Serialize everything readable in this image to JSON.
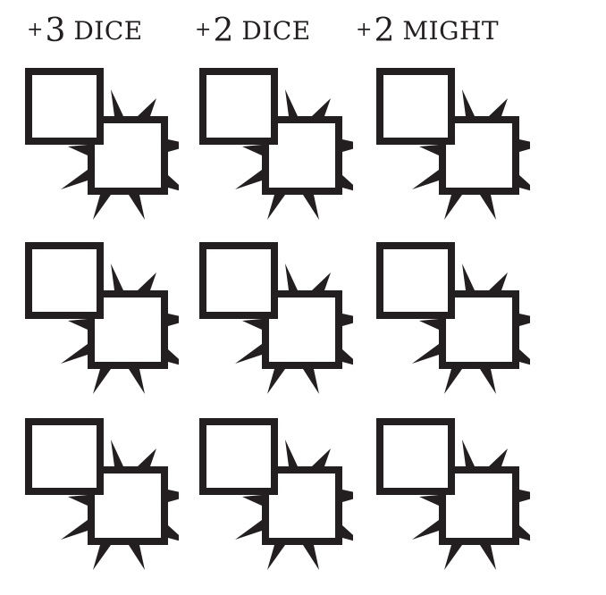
{
  "headers": [
    {
      "plus": "+",
      "number": "3",
      "word": "DICE"
    },
    {
      "plus": "+",
      "number": "2",
      "word": "DICE"
    },
    {
      "plus": "+",
      "number": "2",
      "word": "MIGHT"
    }
  ],
  "grid": {
    "rows": 3,
    "columns": 3,
    "slot": {
      "back_box_icon": "plain-square-box",
      "front_box_icon": "spiked-square-box",
      "stroke_color": "#231f20",
      "fill_color": "#ffffff"
    }
  }
}
